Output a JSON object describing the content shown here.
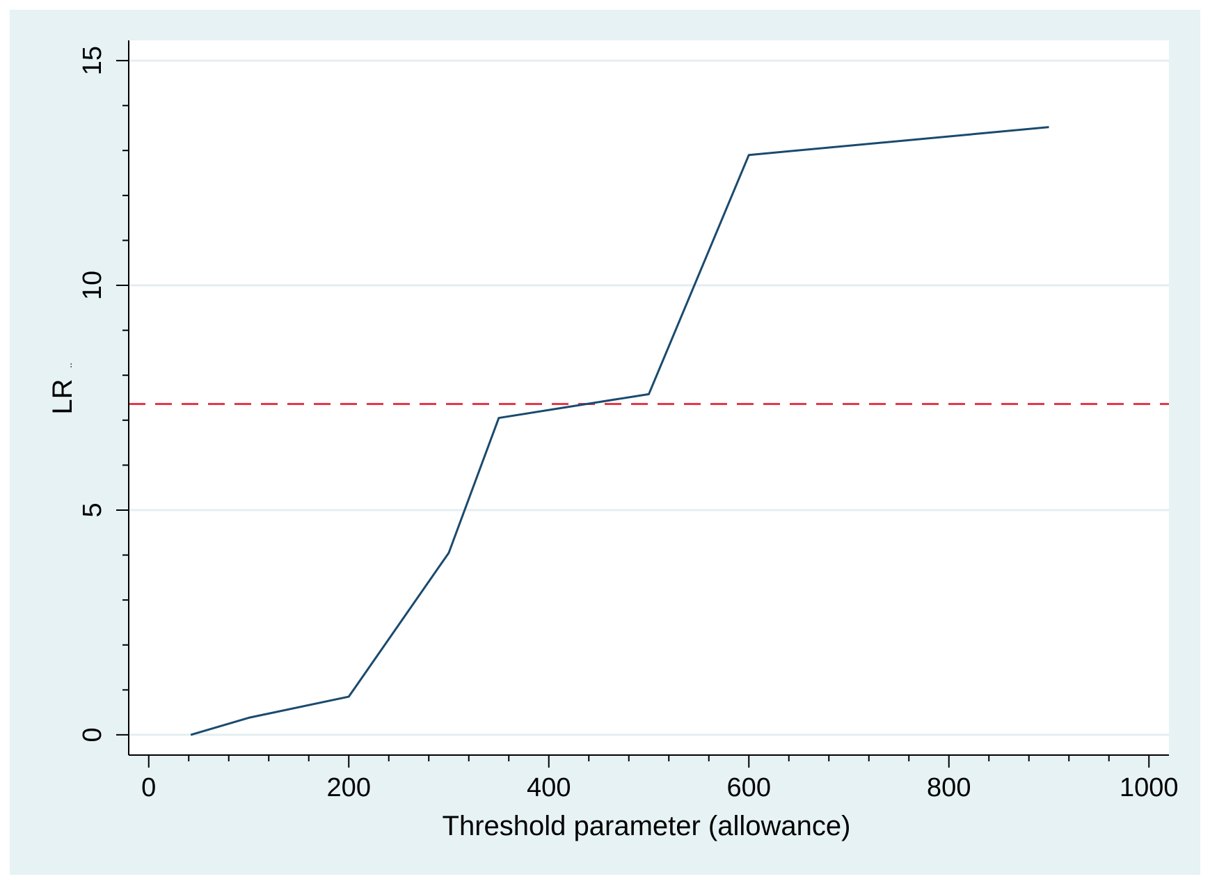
{
  "colors": {
    "outer_background": "#e6f2f4",
    "plot_background": "#ffffff",
    "gridline": "#e4eef1",
    "series_line": "#1a4a6e",
    "threshold_line": "#e8364a",
    "axis": "#000000"
  },
  "chart_data": {
    "type": "line",
    "title": "",
    "xlabel": "Threshold parameter (allowance)",
    "ylabel": "LR",
    "ylabel_subscript": "..",
    "xlim": [
      -20,
      1020
    ],
    "ylim": [
      -0.45,
      15.45
    ],
    "x_ticks": [
      0,
      200,
      400,
      600,
      800,
      1000
    ],
    "x_tick_labels": [
      "0",
      "200",
      "400",
      "600",
      "800",
      "1000"
    ],
    "x_minor_ticks": [
      40,
      80,
      120,
      160,
      240,
      280,
      320,
      360,
      440,
      480,
      520,
      560,
      640,
      680,
      720,
      760,
      840,
      880,
      920,
      960
    ],
    "y_ticks": [
      0,
      5,
      10,
      15
    ],
    "y_tick_labels": [
      "0",
      "5",
      "10",
      "15"
    ],
    "y_minor_ticks": [
      1,
      2,
      3,
      4,
      6,
      7,
      8,
      9,
      11,
      12,
      13,
      14
    ],
    "grid": true,
    "series": [
      {
        "x": [
          42,
          100,
          200,
          300,
          350,
          500,
          600,
          900
        ],
        "y": [
          0.0,
          0.38,
          0.85,
          4.05,
          7.05,
          7.58,
          12.9,
          13.52
        ]
      }
    ],
    "reference_line": {
      "y": 7.36,
      "style": "dashed"
    }
  }
}
